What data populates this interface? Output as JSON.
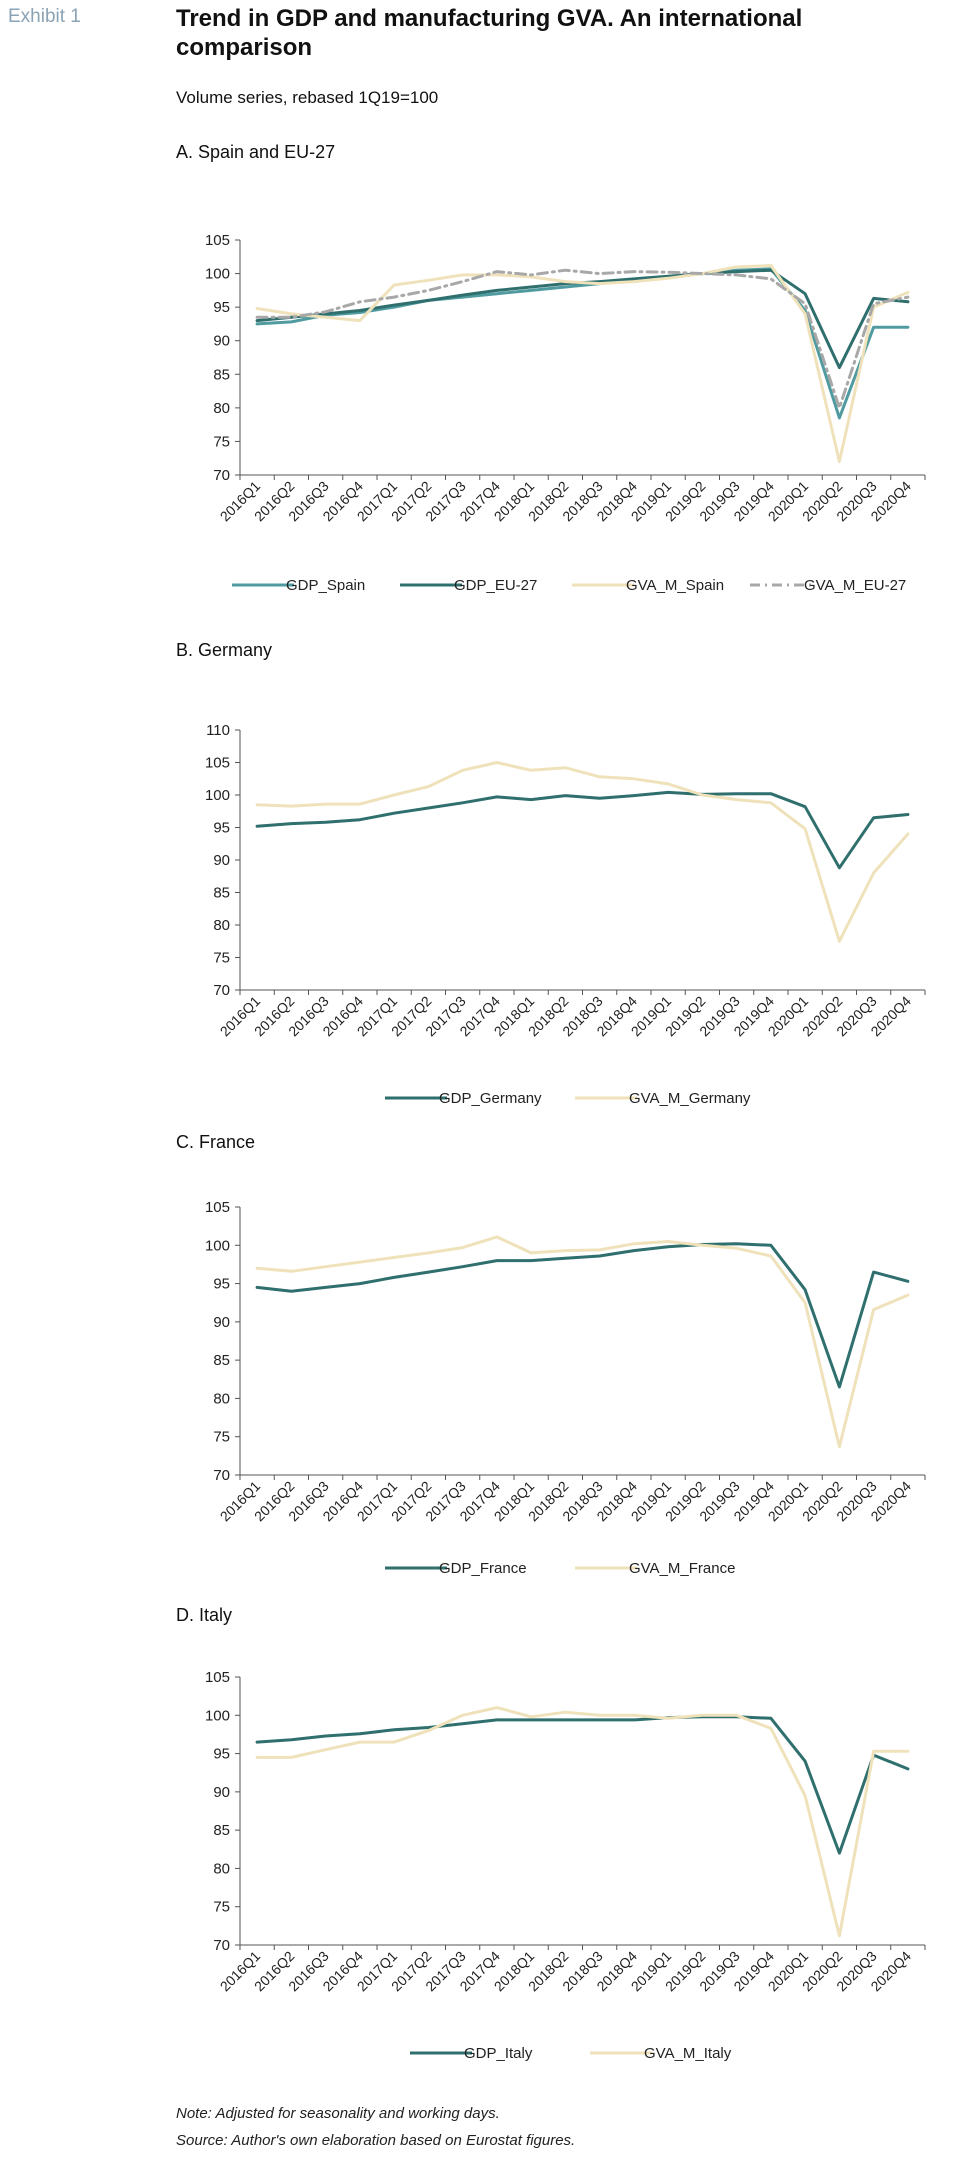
{
  "header": {
    "exhibit_label": "Exhibit 1",
    "title": "Trend in GDP and manufacturing GVA. An international comparison",
    "subtitle": "Volume series, rebased 1Q19=100"
  },
  "colors": {
    "gdp_spain": "#4f9ba0",
    "gdp_main": "#2f6f6e",
    "gva": "#efe2bb",
    "gva_eu": "#a8a8a8",
    "axis": "#555555"
  },
  "chart_data": [
    {
      "type": "line",
      "title": "A. Spain and EU-27",
      "categories": [
        "2016Q1",
        "2016Q2",
        "2016Q3",
        "2016Q4",
        "2017Q1",
        "2017Q2",
        "2017Q3",
        "2017Q4",
        "2018Q1",
        "2018Q2",
        "2018Q3",
        "2018Q4",
        "2019Q1",
        "2019Q2",
        "2019Q3",
        "2019Q4",
        "2020Q1",
        "2020Q2",
        "2020Q3",
        "2020Q4"
      ],
      "ylim": [
        70,
        105
      ],
      "yticks": [
        70,
        75,
        80,
        85,
        90,
        95,
        100,
        105
      ],
      "grid": false,
      "legend": "bottom",
      "series": [
        {
          "name": "GDP_Spain",
          "color": "#4f9ba0",
          "dash": false,
          "values": [
            92.5,
            92.8,
            93.8,
            94.2,
            95.0,
            96.0,
            96.5,
            97.0,
            97.5,
            98.0,
            98.5,
            99.0,
            99.5,
            100.0,
            100.5,
            100.7,
            94.5,
            78.5,
            92.0,
            92.0
          ]
        },
        {
          "name": "GDP_EU-27",
          "color": "#2f6f6e",
          "dash": false,
          "values": [
            93.0,
            93.5,
            94.0,
            94.5,
            95.3,
            96.0,
            96.8,
            97.5,
            98.0,
            98.5,
            98.8,
            99.2,
            99.6,
            100.0,
            100.3,
            100.5,
            97.0,
            86.0,
            96.3,
            95.8
          ]
        },
        {
          "name": "GVA_M_Spain",
          "color": "#efe2bb",
          "dash": false,
          "values": [
            94.8,
            94.0,
            93.5,
            93.0,
            98.3,
            99.0,
            99.8,
            99.8,
            99.5,
            98.8,
            98.5,
            98.8,
            99.3,
            100.0,
            101.0,
            101.2,
            94.0,
            72.0,
            95.0,
            97.2
          ]
        },
        {
          "name": "GVA_M_EU-27",
          "color": "#a8a8a8",
          "dash": true,
          "values": [
            93.5,
            93.5,
            94.3,
            95.8,
            96.5,
            97.5,
            98.8,
            100.3,
            99.8,
            100.5,
            100.0,
            100.3,
            100.2,
            100.0,
            99.8,
            99.2,
            95.5,
            80.0,
            95.5,
            96.5
          ]
        }
      ]
    },
    {
      "type": "line",
      "title": "B. Germany",
      "categories": [
        "2016Q1",
        "2016Q2",
        "2016Q3",
        "2016Q4",
        "2017Q1",
        "2017Q2",
        "2017Q3",
        "2017Q4",
        "2018Q1",
        "2018Q2",
        "2018Q3",
        "2018Q4",
        "2019Q1",
        "2019Q2",
        "2019Q3",
        "2019Q4",
        "2020Q1",
        "2020Q2",
        "2020Q3",
        "2020Q4"
      ],
      "ylim": [
        70,
        110
      ],
      "yticks": [
        70,
        75,
        80,
        85,
        90,
        95,
        100,
        105,
        110
      ],
      "grid": false,
      "legend": "bottom",
      "series": [
        {
          "name": "GDP_Germany",
          "color": "#2f6f6e",
          "dash": false,
          "values": [
            95.2,
            95.6,
            95.8,
            96.2,
            97.2,
            98.0,
            98.8,
            99.7,
            99.3,
            99.9,
            99.5,
            99.9,
            100.4,
            100.1,
            100.2,
            100.2,
            98.2,
            88.8,
            96.5,
            97.0
          ]
        },
        {
          "name": "GVA_M_Germany",
          "color": "#efe2bb",
          "dash": false,
          "values": [
            98.5,
            98.3,
            98.6,
            98.6,
            100.0,
            101.3,
            103.8,
            105.0,
            103.8,
            104.2,
            102.8,
            102.5,
            101.7,
            100.0,
            99.3,
            98.8,
            94.8,
            77.5,
            88.0,
            94.0
          ]
        }
      ]
    },
    {
      "type": "line",
      "title": "C. France",
      "categories": [
        "2016Q1",
        "2016Q2",
        "2016Q3",
        "2016Q4",
        "2017Q1",
        "2017Q2",
        "2017Q3",
        "2017Q4",
        "2018Q1",
        "2018Q2",
        "2018Q3",
        "2018Q4",
        "2019Q1",
        "2019Q2",
        "2019Q3",
        "2019Q4",
        "2020Q1",
        "2020Q2",
        "2020Q3",
        "2020Q4"
      ],
      "ylim": [
        70,
        105
      ],
      "yticks": [
        70,
        75,
        80,
        85,
        90,
        95,
        100,
        105
      ],
      "grid": false,
      "legend": "bottom",
      "series": [
        {
          "name": "GDP_France",
          "color": "#2f6f6e",
          "dash": false,
          "values": [
            94.5,
            94.0,
            94.5,
            95.0,
            95.8,
            96.5,
            97.2,
            98.0,
            98.0,
            98.3,
            98.6,
            99.3,
            99.8,
            100.1,
            100.2,
            100.0,
            94.2,
            81.5,
            96.5,
            95.3
          ]
        },
        {
          "name": "GVA_M_France",
          "color": "#efe2bb",
          "dash": false,
          "values": [
            97.0,
            96.6,
            97.2,
            97.8,
            98.4,
            99.0,
            99.7,
            101.1,
            99.0,
            99.3,
            99.4,
            100.2,
            100.5,
            100.0,
            99.6,
            98.6,
            92.5,
            73.7,
            91.6,
            93.5
          ]
        }
      ]
    },
    {
      "type": "line",
      "title": "D. Italy",
      "categories": [
        "2016Q1",
        "2016Q2",
        "2016Q3",
        "2016Q4",
        "2017Q1",
        "2017Q2",
        "2017Q3",
        "2017Q4",
        "2018Q1",
        "2018Q2",
        "2018Q3",
        "2018Q4",
        "2019Q1",
        "2019Q2",
        "2019Q3",
        "2019Q4",
        "2020Q1",
        "2020Q2",
        "2020Q3",
        "2020Q4"
      ],
      "ylim": [
        70,
        105
      ],
      "yticks": [
        70,
        75,
        80,
        85,
        90,
        95,
        100,
        105
      ],
      "grid": false,
      "legend": "bottom",
      "series": [
        {
          "name": "GDP_Italy",
          "color": "#2f6f6e",
          "dash": false,
          "values": [
            96.5,
            96.8,
            97.3,
            97.6,
            98.1,
            98.4,
            98.9,
            99.4,
            99.4,
            99.4,
            99.4,
            99.4,
            99.7,
            99.8,
            99.8,
            99.6,
            94.0,
            82.0,
            94.8,
            93.0
          ]
        },
        {
          "name": "GVA_M_Italy",
          "color": "#efe2bb",
          "dash": false,
          "values": [
            94.5,
            94.5,
            95.5,
            96.5,
            96.5,
            98.0,
            100.0,
            101.0,
            99.8,
            100.4,
            100.0,
            100.0,
            99.6,
            100.0,
            100.0,
            98.3,
            89.5,
            71.2,
            95.3,
            95.3
          ]
        }
      ]
    }
  ],
  "notes": {
    "note": "Note: Adjusted for seasonality and working days.",
    "source": "Source: Author's own elaboration based on Eurostat figures."
  }
}
